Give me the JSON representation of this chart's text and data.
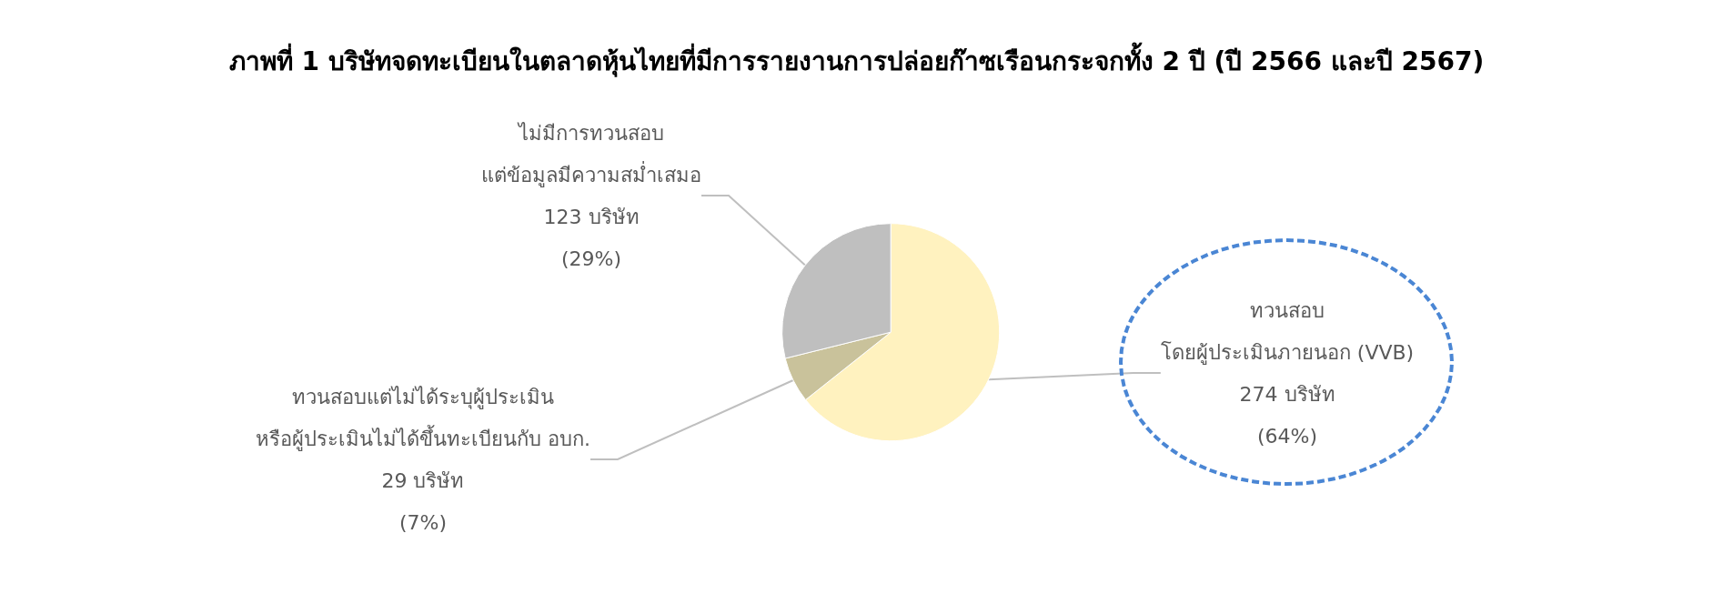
{
  "chart_data": {
    "type": "pie",
    "title": "ภาพที่ 1 บริษัทจดทะเบียนในตลาดหุ้นไทยที่มีการรายงานการปล่อยก๊าซเรือนกระจกทั้ง 2 ปี (ปี 2566 และปี 2567)",
    "categories": [
      "ทวนสอบ\nโดยผู้ประเมินภายนอก (VVB)",
      "ทวนสอบแต่ไม่ได้ระบุผู้ประเมิน\nหรือผู้ประเมินไม่ได้ขึ้นทะเบียนกับ อบก.",
      "ไม่มีการทวนสอบ\nแต่ข้อมูลมีความสม่ำเสมอ"
    ],
    "values": [
      274,
      29,
      123
    ],
    "value_labels": [
      "274 บริษัท\n(64%)",
      "29 บริษัท\n(7%)",
      "123 บริษัท\n(29%)"
    ],
    "colors": [
      "#fff2bf",
      "#c9c29b",
      "#bfbfbf"
    ],
    "legend": false
  }
}
